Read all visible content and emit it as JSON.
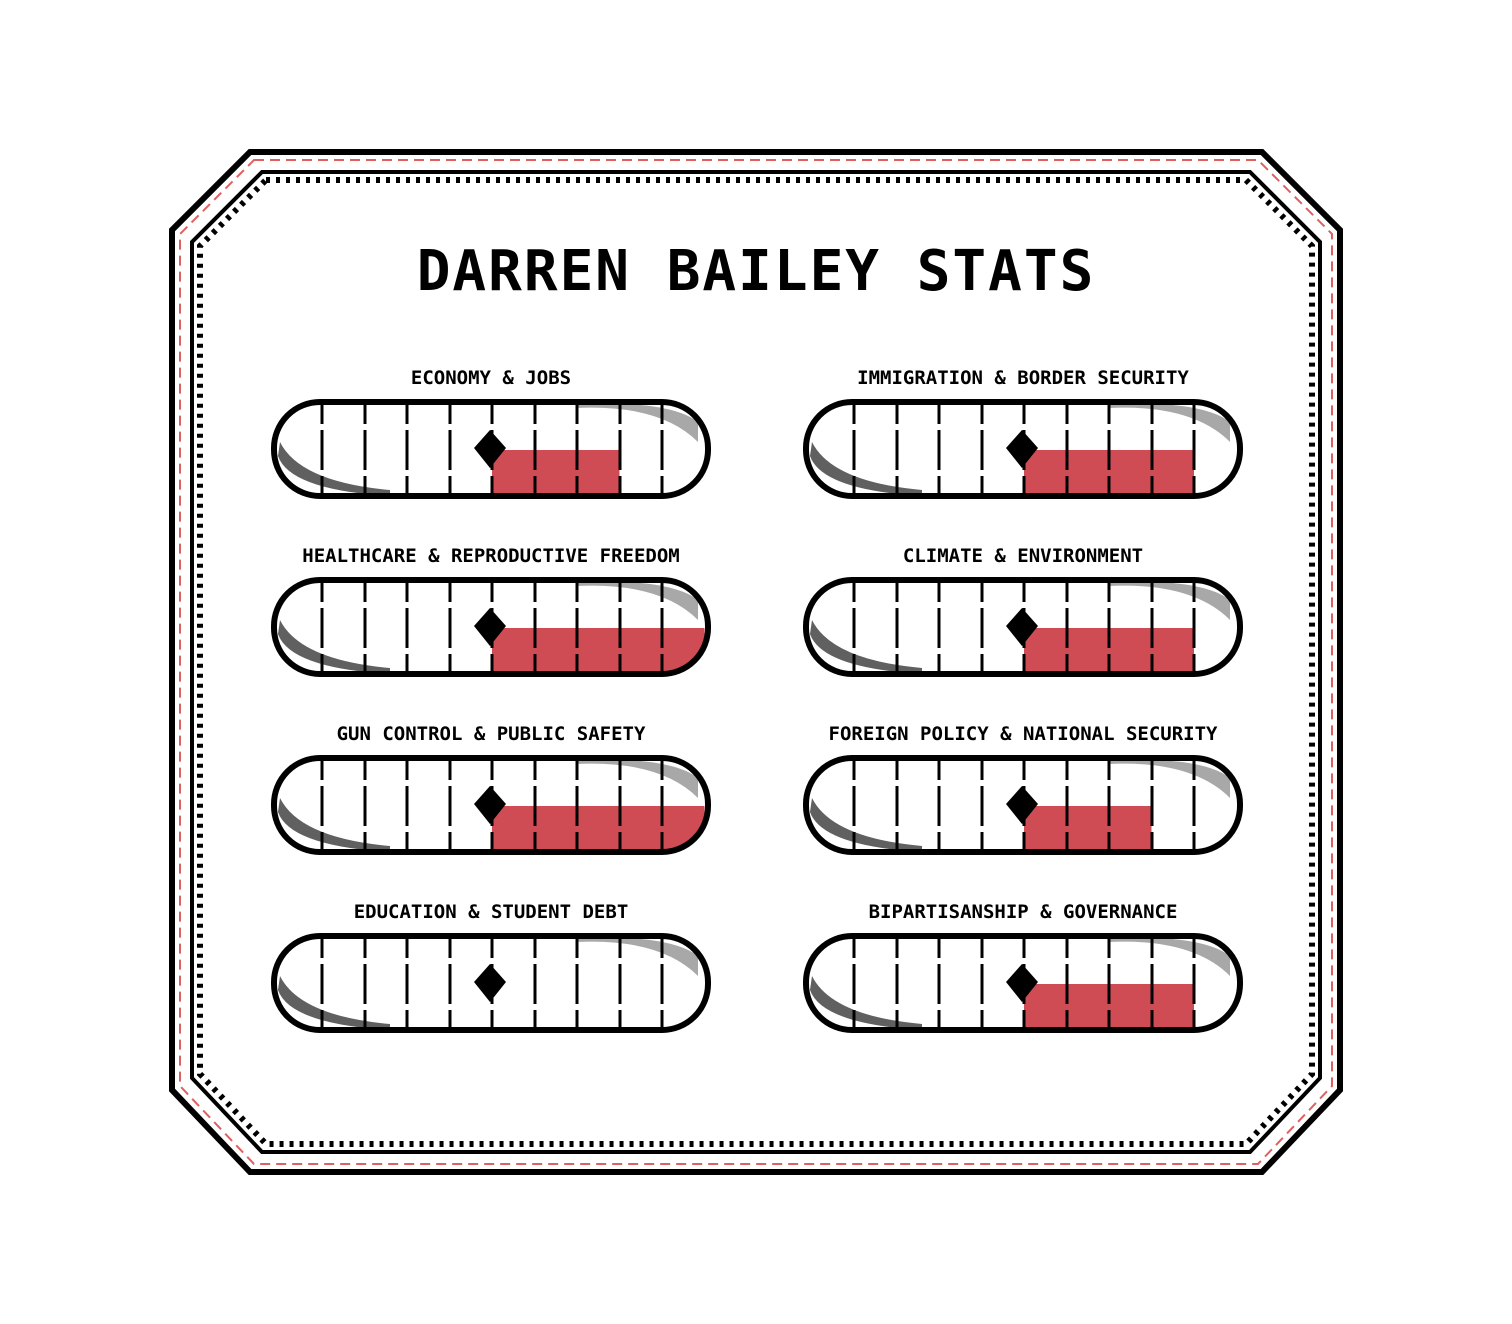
{
  "title": "DARREN BAILEY STATS",
  "colors": {
    "fill": "#d04c54",
    "outline": "#000000",
    "accent_dash": "#e06060",
    "shine": "#a8a8a8",
    "shade": "#606060"
  },
  "scale": {
    "segments": 10,
    "center_segment": 5
  },
  "stats": [
    {
      "label": "ECONOMY & JOBS",
      "fill_segments": 3
    },
    {
      "label": "IMMIGRATION & BORDER SECURITY",
      "fill_segments": 4
    },
    {
      "label": "HEALTHCARE & REPRODUCTIVE FREEDOM",
      "fill_segments": 5
    },
    {
      "label": "CLIMATE & ENVIRONMENT",
      "fill_segments": 4
    },
    {
      "label": "GUN CONTROL & PUBLIC SAFETY",
      "fill_segments": 5
    },
    {
      "label": "FOREIGN POLICY & NATIONAL SECURITY",
      "fill_segments": 3
    },
    {
      "label": "EDUCATION & STUDENT DEBT",
      "fill_segments": 0
    },
    {
      "label": "BIPARTISANSHIP & GOVERNANCE",
      "fill_segments": 4
    }
  ]
}
